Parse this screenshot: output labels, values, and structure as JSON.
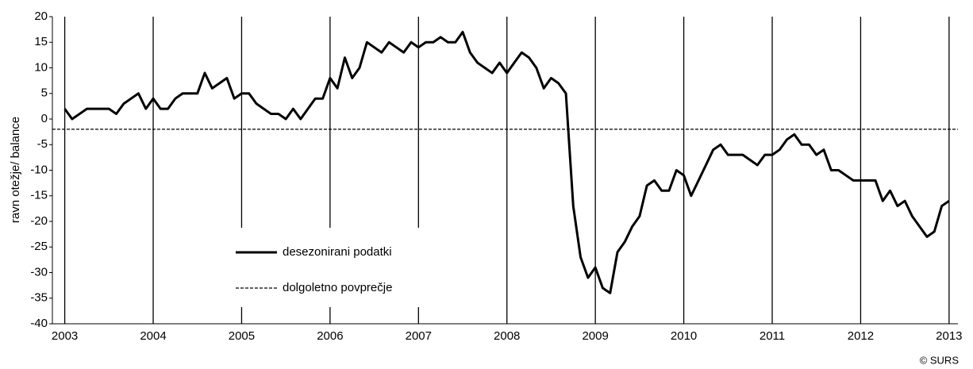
{
  "chart_data": {
    "type": "line",
    "y_label": "ravn otežje/ balance",
    "source": "© SURS",
    "xlim": [
      2002.86,
      2013.1
    ],
    "xticks": [
      2003,
      2004,
      2005,
      2006,
      2007,
      2008,
      2009,
      2010,
      2011,
      2012,
      2013
    ],
    "ylim": [
      -40,
      20
    ],
    "yticks": [
      -40,
      -35,
      -30,
      -25,
      -20,
      -15,
      -10,
      -5,
      0,
      5,
      10,
      15,
      20
    ],
    "grid": "x",
    "series": [
      {
        "name": "desezonirani podatki",
        "color": "#000000",
        "style": "solid",
        "x": [
          2003,
          2003.083,
          2003.167,
          2003.25,
          2003.333,
          2003.417,
          2003.5,
          2003.583,
          2003.667,
          2003.75,
          2003.833,
          2003.917,
          2004,
          2004.083,
          2004.167,
          2004.25,
          2004.333,
          2004.417,
          2004.5,
          2004.583,
          2004.667,
          2004.75,
          2004.833,
          2004.917,
          2005,
          2005.083,
          2005.167,
          2005.25,
          2005.333,
          2005.417,
          2005.5,
          2005.583,
          2005.667,
          2005.75,
          2005.833,
          2005.917,
          2006,
          2006.083,
          2006.167,
          2006.25,
          2006.333,
          2006.417,
          2006.5,
          2006.583,
          2006.667,
          2006.75,
          2006.833,
          2006.917,
          2007,
          2007.083,
          2007.167,
          2007.25,
          2007.333,
          2007.417,
          2007.5,
          2007.583,
          2007.667,
          2007.75,
          2007.833,
          2007.917,
          2008,
          2008.083,
          2008.167,
          2008.25,
          2008.333,
          2008.417,
          2008.5,
          2008.583,
          2008.667,
          2008.75,
          2008.833,
          2008.917,
          2009,
          2009.083,
          2009.167,
          2009.25,
          2009.333,
          2009.417,
          2009.5,
          2009.583,
          2009.667,
          2009.75,
          2009.833,
          2009.917,
          2010,
          2010.083,
          2010.167,
          2010.25,
          2010.333,
          2010.417,
          2010.5,
          2010.583,
          2010.667,
          2010.75,
          2010.833,
          2010.917,
          2011,
          2011.083,
          2011.167,
          2011.25,
          2011.333,
          2011.417,
          2011.5,
          2011.583,
          2011.667,
          2011.75,
          2011.833,
          2011.917,
          2012,
          2012.083,
          2012.167,
          2012.25,
          2012.333,
          2012.417,
          2012.5,
          2012.583,
          2012.667,
          2012.75,
          2012.833,
          2012.917,
          2013
        ],
        "values": [
          2,
          0,
          1,
          2,
          2,
          2,
          2,
          1,
          3,
          4,
          5,
          2,
          4,
          2,
          2,
          4,
          5,
          5,
          5,
          9,
          6,
          7,
          8,
          4,
          5,
          5,
          3,
          2,
          1,
          1,
          0,
          2,
          0,
          2,
          4,
          4,
          8,
          6,
          12,
          8,
          10,
          15,
          14,
          13,
          15,
          14,
          13,
          15,
          14,
          15,
          15,
          16,
          15,
          15,
          17,
          13,
          11,
          10,
          9,
          11,
          9,
          11,
          13,
          12,
          10,
          6,
          8,
          7,
          5,
          -17,
          -27,
          -31,
          -29,
          -33,
          -34,
          -26,
          -24,
          -21,
          -19,
          -13,
          -12,
          -14,
          -14,
          -10,
          -11,
          -15,
          -12,
          -9,
          -6,
          -5,
          -7,
          -7,
          -7,
          -8,
          -9,
          -7,
          -7,
          -6,
          -4,
          -3,
          -5,
          -5,
          -7,
          -6,
          -10,
          -10,
          -11,
          -12,
          -12,
          -12,
          -12,
          -16,
          -14,
          -17,
          -16,
          -19,
          -21,
          -23,
          -22,
          -17,
          -16
        ]
      },
      {
        "name": "dolgoletno povprečje",
        "color": "#000000",
        "style": "dashed",
        "x": [
          2002.86,
          2013.1
        ],
        "values": [
          -2,
          -2
        ]
      }
    ]
  }
}
